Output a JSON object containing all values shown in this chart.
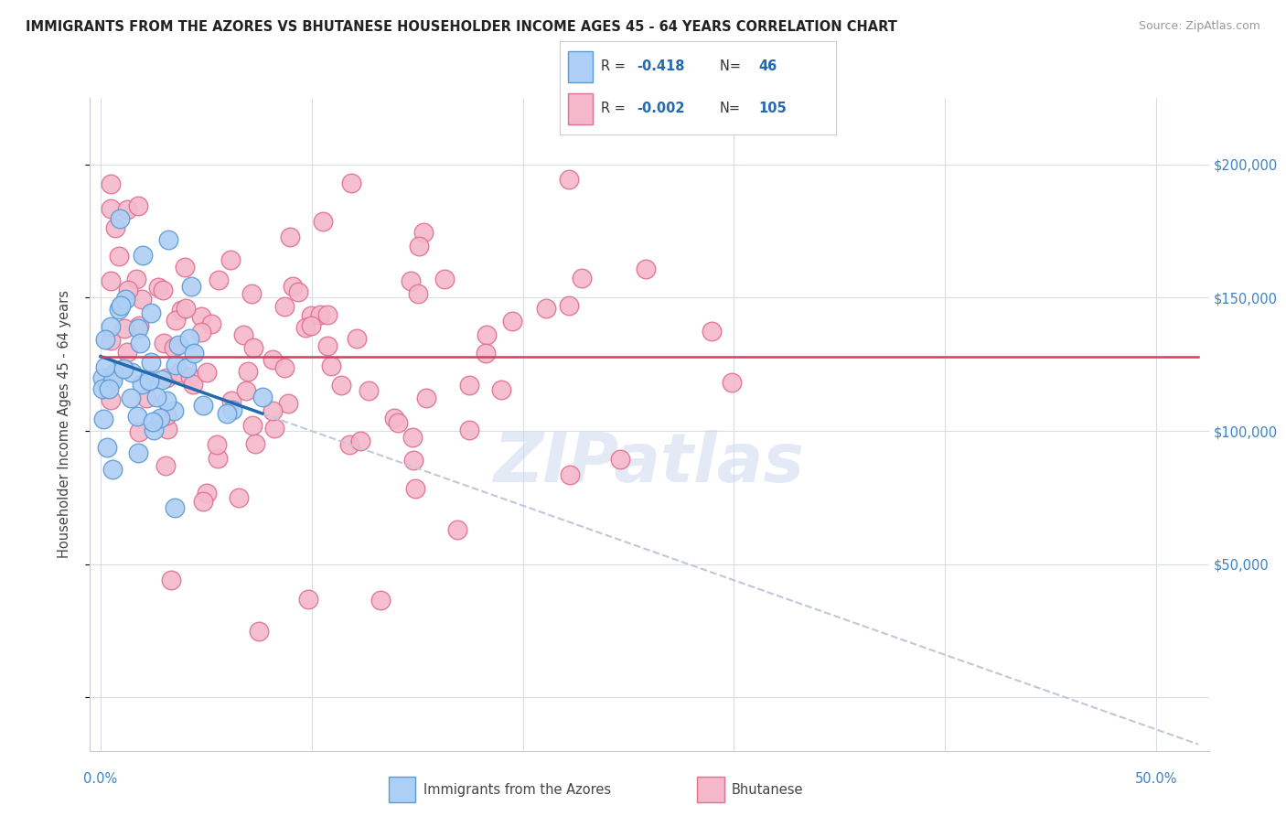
{
  "title": "IMMIGRANTS FROM THE AZORES VS BHUTANESE HOUSEHOLDER INCOME AGES 45 - 64 YEARS CORRELATION CHART",
  "source": "Source: ZipAtlas.com",
  "ylabel": "Householder Income Ages 45 - 64 years",
  "legend_azores_R": "-0.418",
  "legend_azores_N": "46",
  "legend_bhutan_R": "-0.002",
  "legend_bhutan_N": "105",
  "legend_azores_label": "Immigrants from the Azores",
  "legend_bhutan_label": "Bhutanese",
  "azores_color": "#aecff5",
  "azores_edge_color": "#5b9bd5",
  "bhutan_color": "#f5b8cb",
  "bhutan_edge_color": "#e07090",
  "trend_azores_color": "#2468b0",
  "trend_bhutan_color": "#d04060",
  "trend_ext_color": "#c0c8d8",
  "background_color": "#ffffff",
  "grid_color": "#d8dde8",
  "ytick_values": [
    0,
    50000,
    100000,
    150000,
    200000
  ],
  "ytick_labels": [
    "",
    "$50,000",
    "$100,000",
    "$150,000",
    "$200,000"
  ],
  "right_ytick_labels": [
    "",
    "$50,000",
    "$100,000",
    "$150,000",
    "$200,000"
  ],
  "ylim_min": -20000,
  "ylim_max": 225000,
  "xlim_min": -0.005,
  "xlim_max": 0.525
}
